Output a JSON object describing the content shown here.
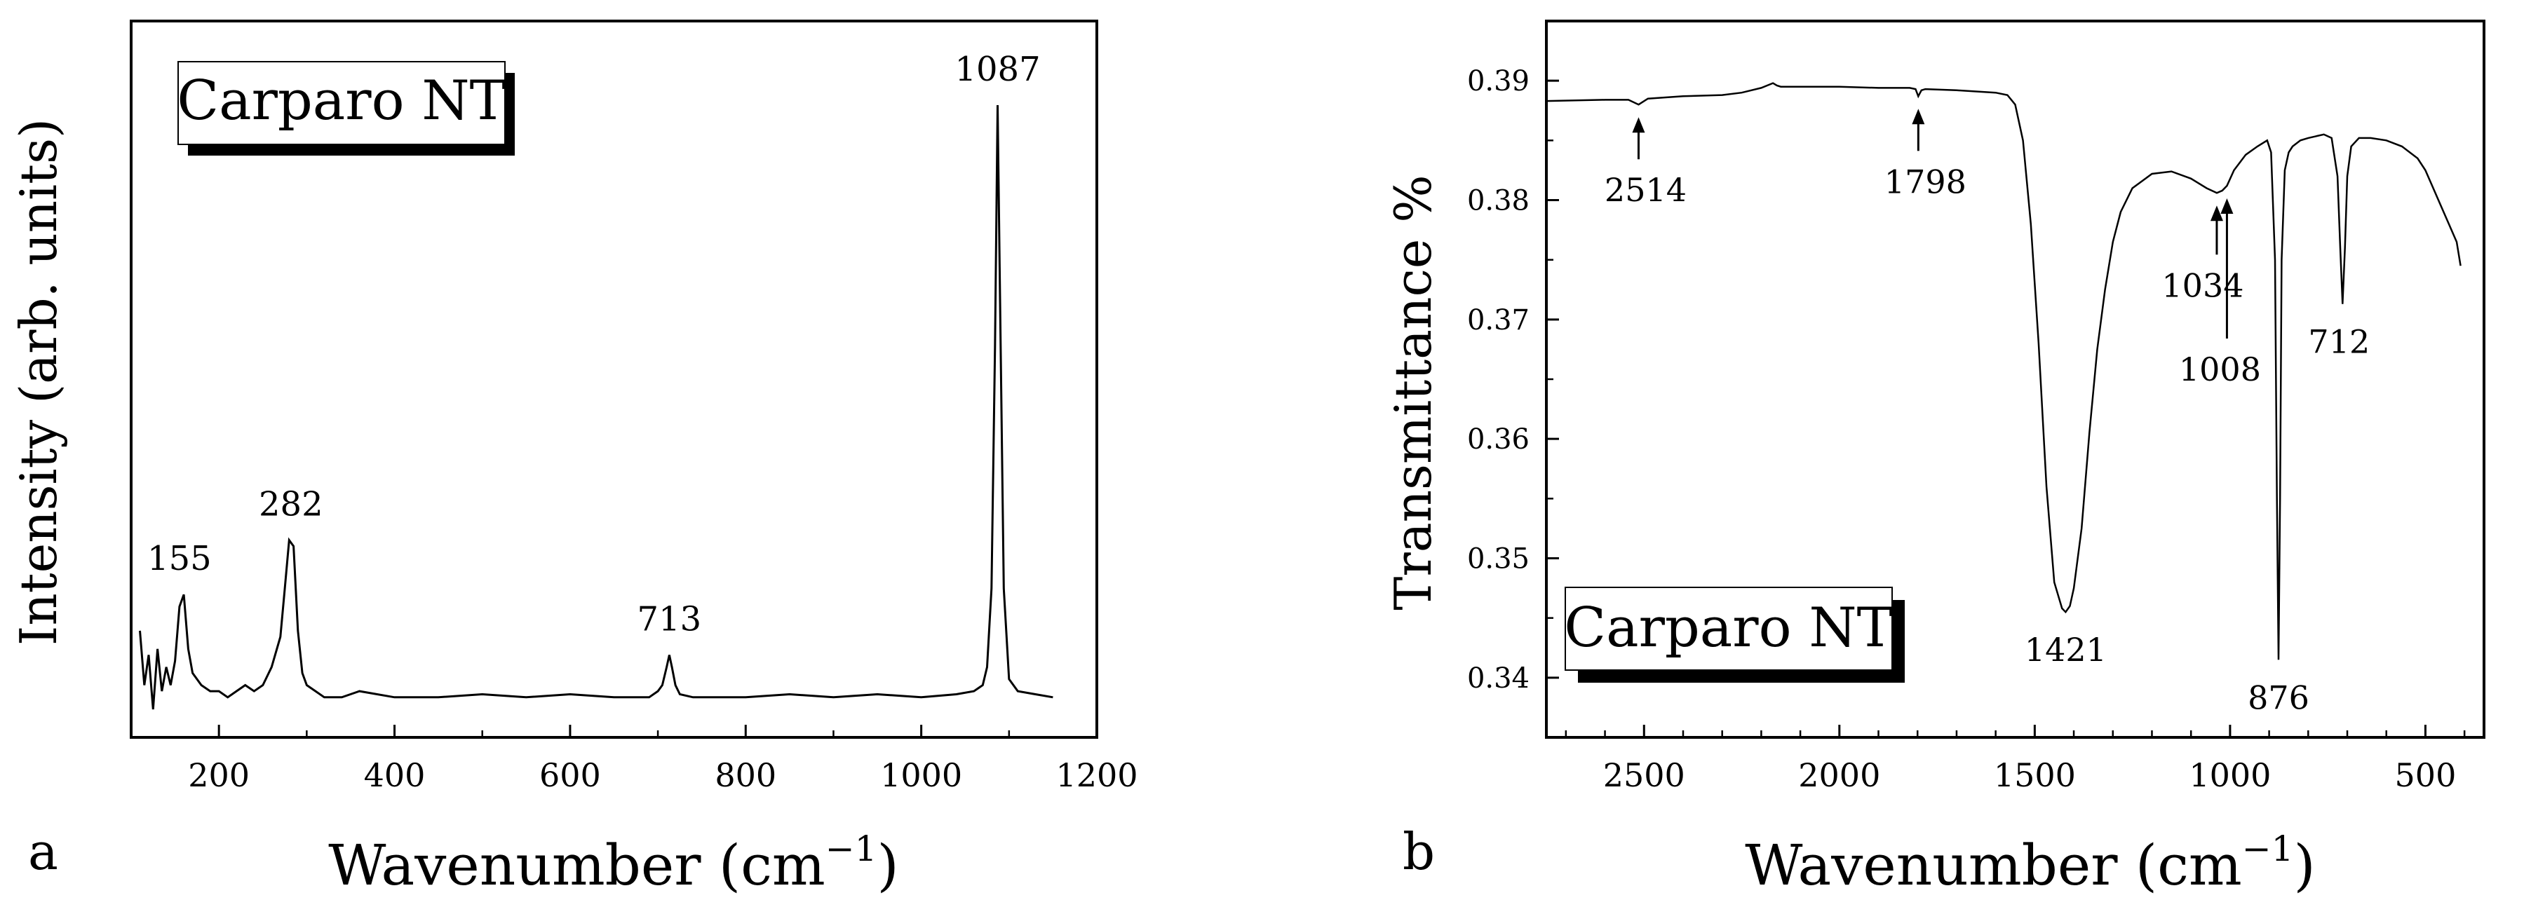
{
  "panels": [
    {
      "id": "a",
      "panel_label": "a"
    },
    {
      "id": "b",
      "panel_label": "b"
    }
  ],
  "chart_data": [
    {
      "type": "line",
      "panel": "a",
      "title": "",
      "sample_label": "Carparo NT",
      "xlabel": "Wavenumber (cm",
      "xlabel_sup": "−1",
      "xlabel_close": ")",
      "ylabel": "Intensity (arb. units)",
      "xlim": [
        100,
        1200
      ],
      "ylim": [
        0,
        1
      ],
      "x_ticks": [
        200,
        400,
        600,
        800,
        1000,
        1200
      ],
      "y_ticks": [],
      "grid": false,
      "series": [
        {
          "x": [
            110,
            115,
            120,
            125,
            130,
            135,
            140,
            145,
            150,
            155,
            160,
            165,
            170,
            180,
            190,
            200,
            210,
            220,
            230,
            240,
            250,
            260,
            270,
            275,
            280,
            285,
            290,
            295,
            300,
            310,
            320,
            340,
            360,
            400,
            450,
            500,
            550,
            600,
            650,
            690,
            700,
            705,
            710,
            713,
            716,
            720,
            725,
            740,
            800,
            850,
            900,
            950,
            1000,
            1040,
            1060,
            1070,
            1075,
            1080,
            1084,
            1087,
            1090,
            1094,
            1100,
            1110,
            1130,
            1150
          ],
          "y": [
            0.13,
            0.04,
            0.09,
            0.0,
            0.1,
            0.03,
            0.07,
            0.04,
            0.08,
            0.17,
            0.19,
            0.1,
            0.06,
            0.04,
            0.03,
            0.03,
            0.02,
            0.03,
            0.04,
            0.03,
            0.04,
            0.07,
            0.12,
            0.2,
            0.28,
            0.27,
            0.13,
            0.06,
            0.04,
            0.03,
            0.02,
            0.02,
            0.03,
            0.02,
            0.02,
            0.025,
            0.02,
            0.025,
            0.02,
            0.02,
            0.03,
            0.04,
            0.07,
            0.09,
            0.07,
            0.04,
            0.025,
            0.02,
            0.02,
            0.025,
            0.02,
            0.025,
            0.02,
            0.025,
            0.03,
            0.04,
            0.07,
            0.2,
            0.6,
            1.0,
            0.65,
            0.2,
            0.05,
            0.03,
            0.025,
            0.02
          ]
        }
      ],
      "peak_labels": [
        {
          "x": 155,
          "text": "155"
        },
        {
          "x": 282,
          "text": "282"
        },
        {
          "x": 713,
          "text": "713"
        },
        {
          "x": 1087,
          "text": "1087"
        }
      ]
    },
    {
      "type": "line",
      "panel": "b",
      "title": "",
      "sample_label": "Carparo NT",
      "xlabel": "Wavenumber (cm",
      "xlabel_sup": "−1",
      "xlabel_close": ")",
      "ylabel": "Transmittance %",
      "xlim": [
        2750,
        350
      ],
      "ylim": [
        0.335,
        0.395
      ],
      "x_ticks": [
        2500,
        2000,
        1500,
        1000,
        500
      ],
      "y_ticks": [
        0.34,
        0.35,
        0.36,
        0.37,
        0.38,
        0.39
      ],
      "y_tick_labels": [
        "0.34",
        "0.35",
        "0.36",
        "0.37",
        "0.38",
        "0.39"
      ],
      "grid": false,
      "series": [
        {
          "x": [
            2750,
            2600,
            2540,
            2514,
            2490,
            2400,
            2300,
            2250,
            2200,
            2170,
            2160,
            2150,
            2100,
            2000,
            1900,
            1820,
            1805,
            1798,
            1790,
            1780,
            1700,
            1600,
            1570,
            1550,
            1530,
            1510,
            1490,
            1470,
            1450,
            1430,
            1421,
            1410,
            1400,
            1380,
            1360,
            1340,
            1320,
            1300,
            1280,
            1250,
            1200,
            1150,
            1100,
            1060,
            1034,
            1020,
            1008,
            990,
            960,
            930,
            905,
            895,
            885,
            880,
            876,
            872,
            868,
            860,
            850,
            840,
            820,
            800,
            760,
            740,
            725,
            718,
            712,
            706,
            700,
            690,
            670,
            640,
            600,
            560,
            520,
            500,
            480,
            460,
            440,
            420,
            410
          ],
          "y": [
            0.3883,
            0.3884,
            0.3884,
            0.388,
            0.3885,
            0.3887,
            0.3888,
            0.389,
            0.3894,
            0.3898,
            0.3896,
            0.3895,
            0.3895,
            0.3895,
            0.3894,
            0.3894,
            0.3893,
            0.3887,
            0.3892,
            0.3893,
            0.3892,
            0.389,
            0.3888,
            0.388,
            0.385,
            0.378,
            0.368,
            0.356,
            0.348,
            0.3458,
            0.3455,
            0.346,
            0.3475,
            0.3525,
            0.3605,
            0.3675,
            0.3725,
            0.3765,
            0.379,
            0.381,
            0.3822,
            0.3824,
            0.3818,
            0.381,
            0.3806,
            0.3808,
            0.3812,
            0.3825,
            0.3838,
            0.3845,
            0.385,
            0.384,
            0.375,
            0.355,
            0.3415,
            0.355,
            0.375,
            0.3825,
            0.384,
            0.3845,
            0.385,
            0.3852,
            0.3855,
            0.3852,
            0.382,
            0.376,
            0.3713,
            0.376,
            0.382,
            0.3845,
            0.3852,
            0.3852,
            0.385,
            0.3845,
            0.3835,
            0.3825,
            0.381,
            0.3795,
            0.378,
            0.3765,
            0.3745
          ]
        }
      ],
      "peak_labels": [
        {
          "x": 2514,
          "text": "2514"
        },
        {
          "x": 1798,
          "text": "1798"
        },
        {
          "x": 1421,
          "text": "1421"
        },
        {
          "x": 1034,
          "text": "1034"
        },
        {
          "x": 1008,
          "text": "1008"
        },
        {
          "x": 876,
          "text": "876"
        },
        {
          "x": 712,
          "text": "712"
        }
      ]
    }
  ]
}
